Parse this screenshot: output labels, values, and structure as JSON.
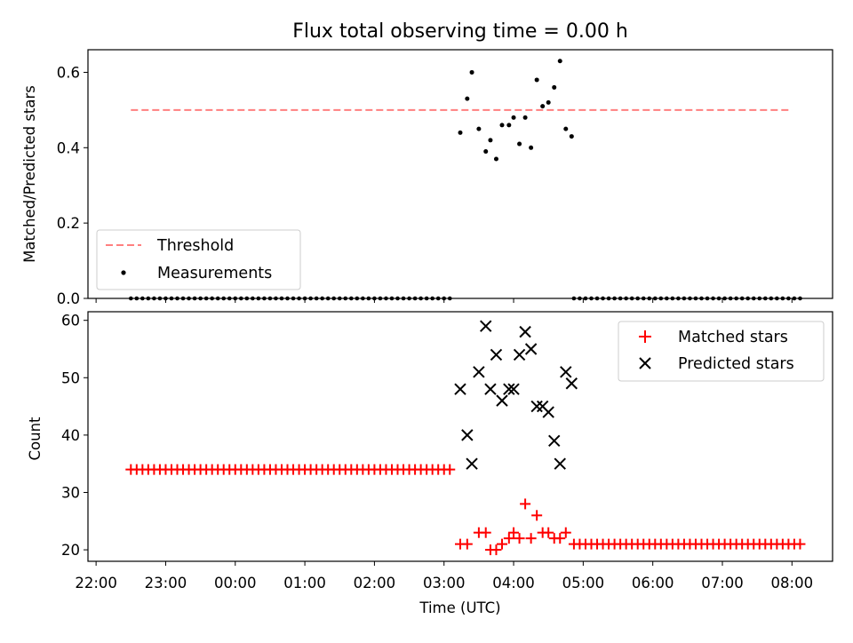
{
  "chart_data": [
    {
      "type": "scatter",
      "title": "Flux total observing time = 0.00 h",
      "ylabel": "Matched/Predicted stars",
      "xlabel": "",
      "ylim": [
        0,
        0.66
      ],
      "yticks": [
        0.0,
        0.2,
        0.4,
        0.6
      ],
      "ytick_labels": [
        "0.0",
        "0.2",
        "0.4",
        "0.6"
      ],
      "legend_position": "lower-left",
      "series": [
        {
          "name": "Threshold",
          "kind": "dashed-line",
          "color": "#ff7f7f",
          "x": [
            "22:30",
            "08:00"
          ],
          "y": [
            0.5,
            0.5
          ]
        },
        {
          "name": "Measurements",
          "kind": "dots",
          "color": "#000000",
          "zero_runs": [
            {
              "start": "22:30",
              "end": "03:06",
              "step_min": 5,
              "y": 0
            },
            {
              "start": "04:52",
              "end": "08:08",
              "step_min": 5,
              "y": 0
            }
          ],
          "points": [
            [
              "03:14",
              0.44
            ],
            [
              "03:20",
              0.53
            ],
            [
              "03:24",
              0.6
            ],
            [
              "03:30",
              0.45
            ],
            [
              "03:36",
              0.39
            ],
            [
              "03:40",
              0.42
            ],
            [
              "03:45",
              0.37
            ],
            [
              "03:50",
              0.46
            ],
            [
              "03:56",
              0.46
            ],
            [
              "04:00",
              0.48
            ],
            [
              "04:05",
              0.41
            ],
            [
              "04:10",
              0.48
            ],
            [
              "04:15",
              0.4
            ],
            [
              "04:20",
              0.58
            ],
            [
              "04:25",
              0.51
            ],
            [
              "04:30",
              0.52
            ],
            [
              "04:35",
              0.56
            ],
            [
              "04:40",
              0.63
            ],
            [
              "04:45",
              0.45
            ],
            [
              "04:50",
              0.43
            ]
          ]
        }
      ]
    },
    {
      "type": "scatter",
      "title": "",
      "ylabel": "Count",
      "xlabel": "Time (UTC)",
      "ylim": [
        18,
        61.5
      ],
      "yticks": [
        20,
        30,
        40,
        50,
        60
      ],
      "ytick_labels": [
        "20",
        "30",
        "40",
        "50",
        "60"
      ],
      "xticks": [
        "22:00",
        "23:00",
        "00:00",
        "01:00",
        "02:00",
        "03:00",
        "04:00",
        "05:00",
        "06:00",
        "07:00",
        "08:00"
      ],
      "xlim": [
        "21:53",
        "08:35"
      ],
      "legend_position": "upper-right",
      "series": [
        {
          "name": "Matched stars",
          "marker": "+",
          "color": "#ff0000",
          "runs": [
            {
              "start": "22:30",
              "end": "03:06",
              "step_min": 5,
              "y": 34
            },
            {
              "start": "04:52",
              "end": "08:08",
              "step_min": 5,
              "y": 21
            }
          ],
          "points": [
            [
              "03:14",
              21
            ],
            [
              "03:20",
              21
            ],
            [
              "03:30",
              23
            ],
            [
              "03:36",
              23
            ],
            [
              "03:40",
              20
            ],
            [
              "03:45",
              20
            ],
            [
              "03:50",
              21
            ],
            [
              "03:56",
              22
            ],
            [
              "04:00",
              23
            ],
            [
              "04:05",
              22
            ],
            [
              "04:10",
              28
            ],
            [
              "04:15",
              22
            ],
            [
              "04:20",
              26
            ],
            [
              "04:25",
              23
            ],
            [
              "04:30",
              23
            ],
            [
              "04:35",
              22
            ],
            [
              "04:40",
              22
            ],
            [
              "04:45",
              23
            ]
          ]
        },
        {
          "name": "Predicted stars",
          "marker": "x",
          "color": "#000000",
          "points": [
            [
              "03:14",
              48
            ],
            [
              "03:20",
              40
            ],
            [
              "03:24",
              35
            ],
            [
              "03:30",
              51
            ],
            [
              "03:36",
              59
            ],
            [
              "03:40",
              48
            ],
            [
              "03:45",
              54
            ],
            [
              "03:50",
              46
            ],
            [
              "03:56",
              48
            ],
            [
              "04:00",
              48
            ],
            [
              "04:05",
              54
            ],
            [
              "04:10",
              58
            ],
            [
              "04:15",
              55
            ],
            [
              "04:20",
              45
            ],
            [
              "04:25",
              45
            ],
            [
              "04:30",
              44
            ],
            [
              "04:35",
              39
            ],
            [
              "04:40",
              35
            ],
            [
              "04:45",
              51
            ],
            [
              "04:50",
              49
            ]
          ]
        }
      ]
    }
  ]
}
